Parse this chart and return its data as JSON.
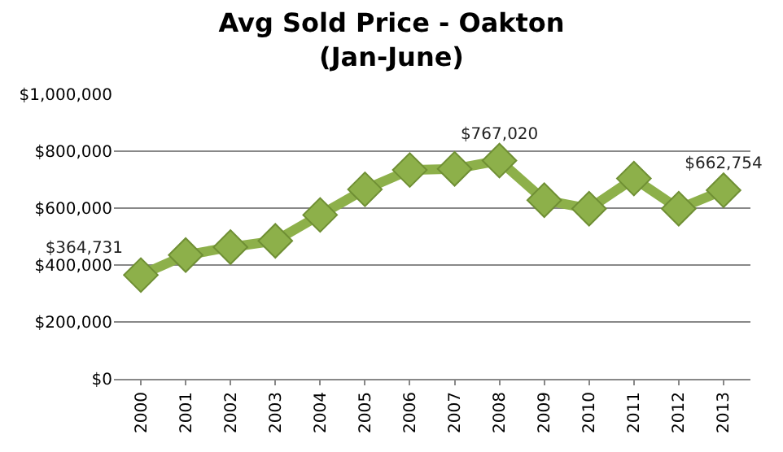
{
  "chart_data": {
    "type": "line",
    "title": "Avg Sold Price - Oakton\n(Jan-June)",
    "categories": [
      "2000",
      "2001",
      "2002",
      "2003",
      "2004",
      "2005",
      "2006",
      "2007",
      "2008",
      "2009",
      "2010",
      "2011",
      "2012",
      "2013"
    ],
    "series": [
      {
        "color": "#8db04a",
        "values": [
          364731,
          435000,
          463000,
          485000,
          576000,
          666000,
          734000,
          738000,
          767020,
          628000,
          598000,
          704000,
          598000,
          662754
        ],
        "value_labels": [
          "$364,731",
          null,
          null,
          null,
          null,
          null,
          null,
          null,
          "$767,020",
          null,
          null,
          null,
          null,
          "$662,754"
        ]
      }
    ],
    "ylim": [
      0,
      1000000
    ],
    "yticks": [
      {
        "value": 0,
        "label": "$0"
      },
      {
        "value": 200000,
        "label": "$200,000"
      },
      {
        "value": 400000,
        "label": "$400,000"
      },
      {
        "value": 600000,
        "label": "$600,000"
      },
      {
        "value": 800000,
        "label": "$800,000"
      },
      {
        "value": 1000000,
        "label": "$1,000,000"
      }
    ],
    "grid": "y",
    "marker": "diamond"
  }
}
